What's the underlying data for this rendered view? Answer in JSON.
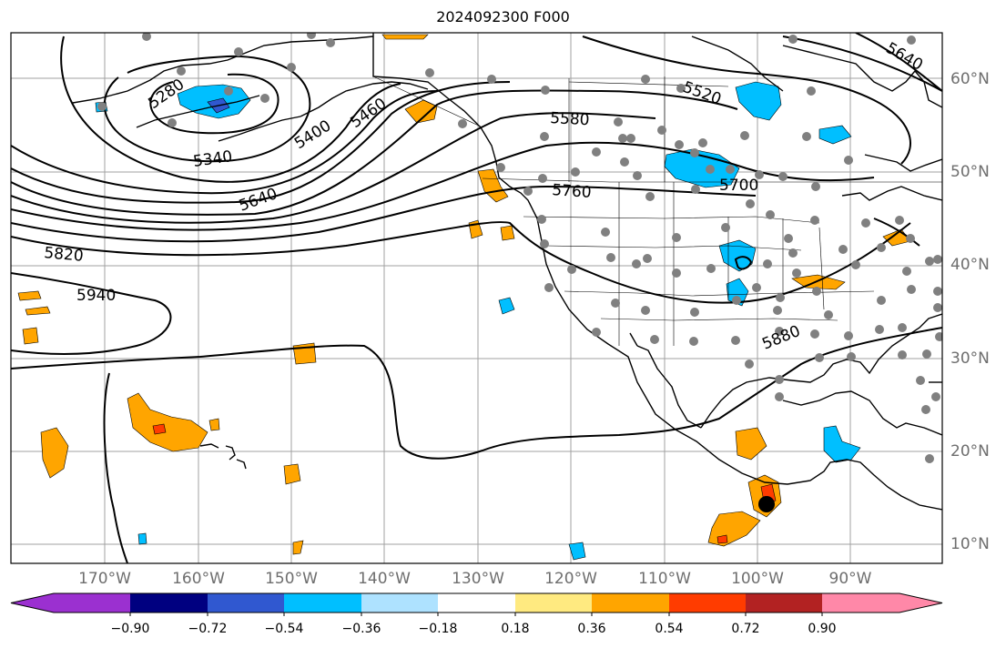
{
  "title": "2024092300 F000",
  "lon_labels": [
    "170°W",
    "160°W",
    "150°W",
    "140°W",
    "130°W",
    "120°W",
    "110°W",
    "100°W",
    "90°W"
  ],
  "lat_labels": [
    "60°N",
    "50°N",
    "40°N",
    "30°N",
    "20°N",
    "10°N"
  ],
  "contour_labels": [
    "5280",
    "5340",
    "5400",
    "5460",
    "5520",
    "5580",
    "5640",
    "5700",
    "5760",
    "5820",
    "5880",
    "5940"
  ],
  "colorbar": {
    "tick_labels": [
      "−0.90",
      "−0.72",
      "−0.54",
      "−0.36",
      "−0.18",
      "0.18",
      "0.36",
      "0.54",
      "0.72",
      "0.90"
    ],
    "colors": [
      "#9b30d0",
      "#000080",
      "#3058d0",
      "#00bfff",
      "#aee2ff",
      "#ffffff",
      "#ffea80",
      "#ffa500",
      "#ff3c00",
      "#b22222",
      "#ff88a8",
      "#ff88a8"
    ]
  }
}
